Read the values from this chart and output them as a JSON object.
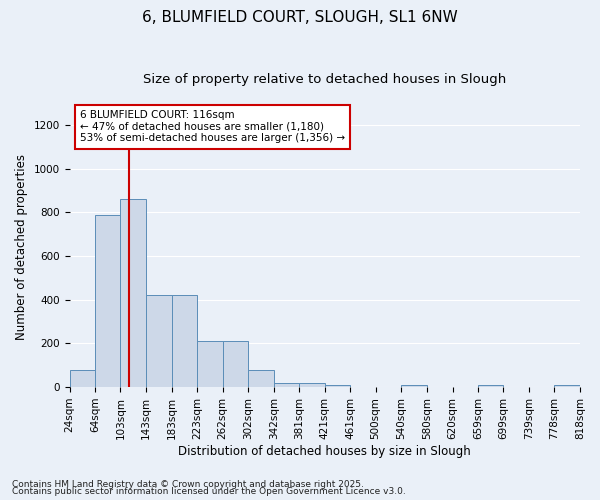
{
  "title1": "6, BLUMFIELD COURT, SLOUGH, SL1 6NW",
  "title2": "Size of property relative to detached houses in Slough",
  "xlabel": "Distribution of detached houses by size in Slough",
  "ylabel": "Number of detached properties",
  "bin_edges": [
    24,
    64,
    103,
    143,
    183,
    223,
    262,
    302,
    342,
    381,
    421,
    461,
    500,
    540,
    580,
    620,
    659,
    699,
    739,
    778,
    818
  ],
  "bar_heights": [
    80,
    790,
    860,
    420,
    420,
    210,
    210,
    80,
    20,
    20,
    10,
    0,
    0,
    10,
    0,
    0,
    10,
    0,
    0,
    10
  ],
  "bar_color": "#cdd8e8",
  "bar_edge_color": "#5b8db8",
  "background_color": "#eaf0f8",
  "grid_color": "#ffffff",
  "red_line_x": 116,
  "annotation_title": "6 BLUMFIELD COURT: 116sqm",
  "annotation_line1": "← 47% of detached houses are smaller (1,180)",
  "annotation_line2": "53% of semi-detached houses are larger (1,356) →",
  "annotation_box_color": "#ffffff",
  "annotation_border_color": "#cc0000",
  "red_line_color": "#cc0000",
  "ylim": [
    0,
    1280
  ],
  "yticks": [
    0,
    200,
    400,
    600,
    800,
    1000,
    1200
  ],
  "footnote1": "Contains HM Land Registry data © Crown copyright and database right 2025.",
  "footnote2": "Contains public sector information licensed under the Open Government Licence v3.0.",
  "title1_fontsize": 11,
  "title2_fontsize": 9.5,
  "xlabel_fontsize": 8.5,
  "ylabel_fontsize": 8.5,
  "tick_fontsize": 7.5,
  "annotation_fontsize": 7.5,
  "footnote_fontsize": 6.5
}
